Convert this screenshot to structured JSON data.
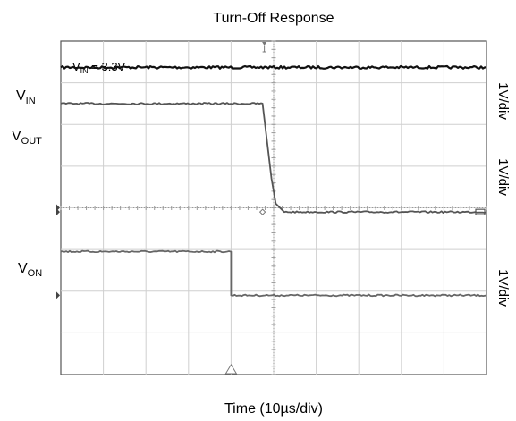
{
  "chart_data": {
    "type": "line",
    "title": "Turn-Off Response",
    "xlabel": "Time (10µs/div)",
    "annotation": {
      "prefix": "V",
      "sub": "IN",
      "suffix": " = 3.3V"
    },
    "x_divisions": 10,
    "y_divisions": 8,
    "time_per_div_us": 10,
    "x_range_us": [
      0,
      100
    ],
    "y_range_div": [
      0,
      8
    ],
    "trigger_time_us": 40,
    "channels": [
      {
        "label_main": "V",
        "label_sub": "IN",
        "scale": "1V/div",
        "color": "#111111",
        "values_div": [
          {
            "t": 0,
            "y": 7.37
          },
          {
            "t": 100,
            "y": 7.37
          }
        ]
      },
      {
        "label_main": "V",
        "label_sub": "OUT",
        "scale": "1V/div",
        "color": "#555555",
        "values_div": [
          {
            "t": 0,
            "y": 6.5
          },
          {
            "t": 47.4,
            "y": 6.5
          },
          {
            "t": 49.5,
            "y": 4.7
          },
          {
            "t": 50.5,
            "y": 4.1
          },
          {
            "t": 52.5,
            "y": 3.9
          },
          {
            "t": 60,
            "y": 3.9
          },
          {
            "t": 100,
            "y": 3.9
          }
        ]
      },
      {
        "label_main": "V",
        "label_sub": "ON",
        "scale": "1V/div",
        "color": "#666666",
        "values_div": [
          {
            "t": 0,
            "y": 2.95
          },
          {
            "t": 40.0,
            "y": 2.95
          },
          {
            "t": 40.0,
            "y": 1.9
          },
          {
            "t": 100,
            "y": 1.9
          }
        ]
      }
    ]
  }
}
